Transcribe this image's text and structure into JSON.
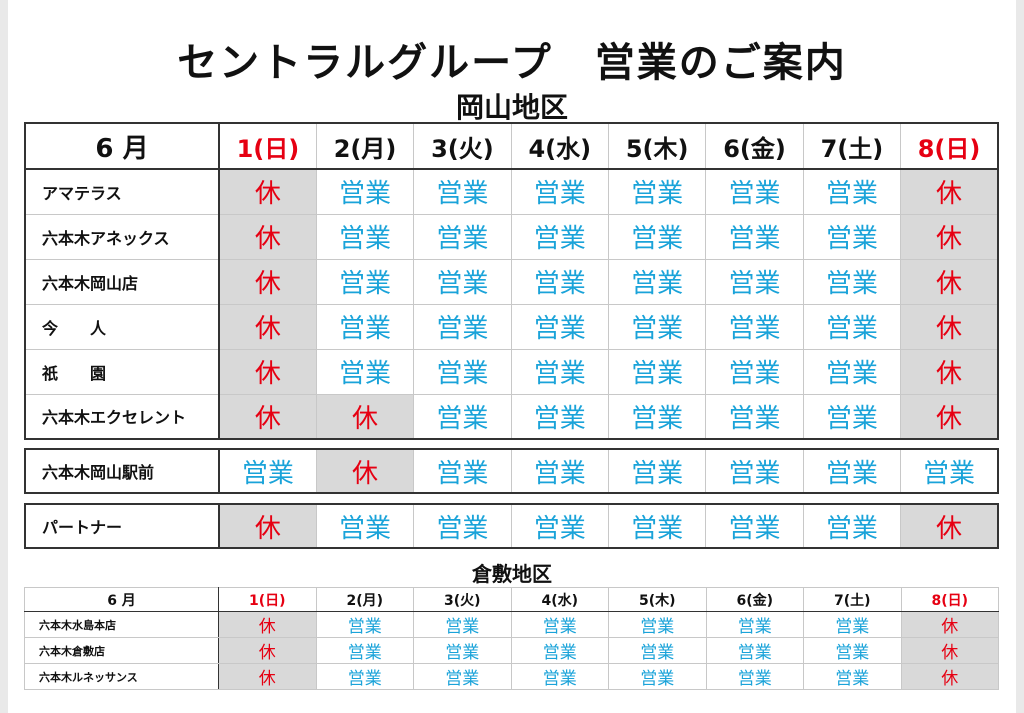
{
  "title": "セントラルグループ　営業のご案内",
  "okayama": {
    "region_label": "岡山地区",
    "month_label": "6 月",
    "days": [
      {
        "label": "1(日)",
        "red": true
      },
      {
        "label": "2(月)",
        "red": false
      },
      {
        "label": "3(火)",
        "red": false
      },
      {
        "label": "4(水)",
        "red": false
      },
      {
        "label": "5(木)",
        "red": false
      },
      {
        "label": "6(金)",
        "red": false
      },
      {
        "label": "7(土)",
        "red": false
      },
      {
        "label": "8(日)",
        "red": true
      }
    ],
    "rows": [
      {
        "name": "アマテラス",
        "status": [
          "休",
          "営業",
          "営業",
          "営業",
          "営業",
          "営業",
          "営業",
          "休"
        ]
      },
      {
        "name": "六本木アネックス",
        "status": [
          "休",
          "営業",
          "営業",
          "営業",
          "営業",
          "営業",
          "営業",
          "休"
        ]
      },
      {
        "name": "六本木岡山店",
        "status": [
          "休",
          "営業",
          "営業",
          "営業",
          "営業",
          "営業",
          "営業",
          "休"
        ]
      },
      {
        "name": "今　　人",
        "status": [
          "休",
          "営業",
          "営業",
          "営業",
          "営業",
          "営業",
          "営業",
          "休"
        ]
      },
      {
        "name": "祇　　園",
        "status": [
          "休",
          "営業",
          "営業",
          "営業",
          "営業",
          "営業",
          "営業",
          "休"
        ]
      },
      {
        "name": "六本木エクセレント",
        "status": [
          "休",
          "休",
          "営業",
          "営業",
          "営業",
          "営業",
          "営業",
          "休"
        ]
      }
    ],
    "station": {
      "name": "六本木岡山駅前",
      "status": [
        "営業",
        "休",
        "営業",
        "営業",
        "営業",
        "営業",
        "営業",
        "営業"
      ]
    },
    "partner": {
      "name": "パートナー",
      "status": [
        "休",
        "営業",
        "営業",
        "営業",
        "営業",
        "営業",
        "営業",
        "休"
      ]
    }
  },
  "kurashiki": {
    "region_label": "倉敷地区",
    "month_label": "6 月",
    "days": [
      {
        "label": "1(日)",
        "red": true
      },
      {
        "label": "2(月)",
        "red": false
      },
      {
        "label": "3(火)",
        "red": false
      },
      {
        "label": "4(水)",
        "red": false
      },
      {
        "label": "5(木)",
        "red": false
      },
      {
        "label": "6(金)",
        "red": false
      },
      {
        "label": "7(土)",
        "red": false
      },
      {
        "label": "8(日)",
        "red": true
      }
    ],
    "rows": [
      {
        "name": "六本木水島本店",
        "status": [
          "休",
          "営業",
          "営業",
          "営業",
          "営業",
          "営業",
          "営業",
          "休"
        ]
      },
      {
        "name": "六本木倉敷店",
        "status": [
          "休",
          "営業",
          "営業",
          "営業",
          "営業",
          "営業",
          "営業",
          "休"
        ]
      },
      {
        "name": "六本木ルネッサンス",
        "status": [
          "休",
          "営業",
          "営業",
          "営業",
          "営業",
          "営業",
          "営業",
          "休"
        ]
      }
    ]
  },
  "colors": {
    "closed_text": "#e60012",
    "open_text": "#1aa3d9",
    "closed_bg": "#d9d9d9"
  },
  "closed_mark": "休"
}
